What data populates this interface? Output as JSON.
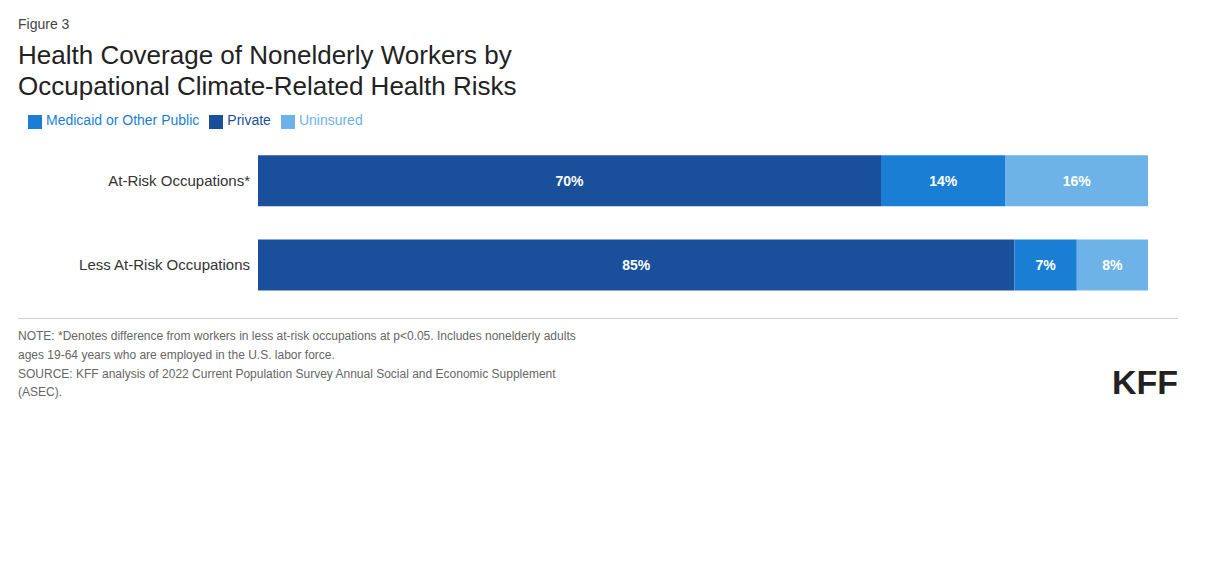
{
  "chart_data": {
    "type": "bar",
    "orientation": "horizontal",
    "stacked": true,
    "data_labels": true,
    "tick_labels": "y",
    "grid": false,
    "legend": "top-left",
    "title": "Health Coverage of Nonelderly Workers by\nOccupational Climate-Related Health Risks",
    "annotations": [
      "Figure 3",
      "NOTE: *Denotes difference from workers in less at-risk occupations at p<0.05. Includes nonelderly adults\nages 19-64 years who are employed in the U.S. labor force.\nSOURCE: KFF analysis of 2022 Current Population Survey Annual Social and Economic Supplement\n(ASEC).",
      "KFF"
    ],
    "categories": [
      "At-Risk Occupations*",
      "Less At-Risk Occupations"
    ],
    "xlim": [
      0,
      100
    ],
    "series": [
      {
        "name": "Private",
        "color": "#1a4f9c",
        "values": [
          70,
          85
        ],
        "value_labels": [
          "70%",
          "85%"
        ]
      },
      {
        "name": "Medicaid or Other Public",
        "color": "#1a7fd4",
        "values": [
          14,
          7
        ],
        "value_labels": [
          "14%",
          "7%"
        ]
      },
      {
        "name": "Uninsured",
        "color": "#6db3e8",
        "values": [
          16,
          8
        ],
        "value_labels": [
          "16%",
          "8%"
        ]
      }
    ]
  }
}
